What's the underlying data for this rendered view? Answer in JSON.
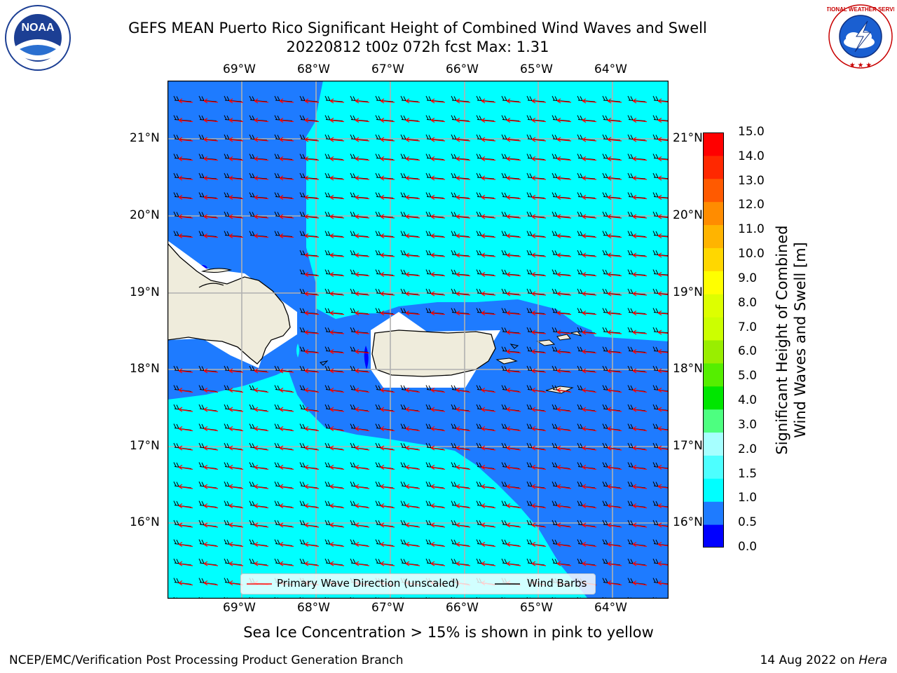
{
  "header": {
    "title_line1": "GEFS MEAN Puerto Rico Significant Height of Combined Wind Waves and Swell",
    "title_line2": "20220812 t00z 072h fcst   Max: 1.31",
    "left_logo": {
      "icon": "noaa-logo-icon",
      "text": "NOAA"
    },
    "right_logo": {
      "icon": "nws-logo-icon",
      "text": "NATIONAL WEATHER SERVICE"
    }
  },
  "map": {
    "lon_labels": [
      "69°W",
      "68°W",
      "67°W",
      "66°W",
      "65°W",
      "64°W"
    ],
    "lat_labels": [
      "21°N",
      "20°N",
      "19°N",
      "18°N",
      "17°N",
      "16°N"
    ],
    "legend": {
      "wave_label": "Primary Wave Direction (unscaled)",
      "wave_color": "#ff0000",
      "barb_label": "Wind Barbs",
      "barb_color": "#000000"
    },
    "colors": {
      "land": "#efecdc",
      "band_0_0_5": "#0000ff",
      "band_0_5_1_0": "#1e7bff",
      "band_1_0_1_5": "#00ffff"
    }
  },
  "colorbar": {
    "title_line1": "Significant Height of Combined",
    "title_line2": "Wind Waves and Swell [m]",
    "ticks": [
      "15.0",
      "14.0",
      "13.0",
      "12.0",
      "11.0",
      "10.0",
      "9.0",
      "8.0",
      "7.0",
      "6.0",
      "5.0",
      "4.0",
      "3.0",
      "2.0",
      "1.5",
      "1.0",
      "0.5",
      "0.0"
    ],
    "colors_bottom_to_top": [
      "#0000ff",
      "#1e7bff",
      "#00ffff",
      "#4dffff",
      "#a6ffff",
      "#4dff80",
      "#00e600",
      "#55ee00",
      "#99ee00",
      "#ccff00",
      "#ddff00",
      "#ffff00",
      "#ffd700",
      "#ffb400",
      "#ff8c00",
      "#ff5a00",
      "#ff2800",
      "#ff0000"
    ]
  },
  "note": "Sea Ice Concentration > 15% is shown in pink to yellow",
  "footer": {
    "left": "NCEP/EMC/Verification Post Processing Product Generation Branch",
    "right_prefix": "14 Aug 2022 on ",
    "right_host": "Hera"
  }
}
